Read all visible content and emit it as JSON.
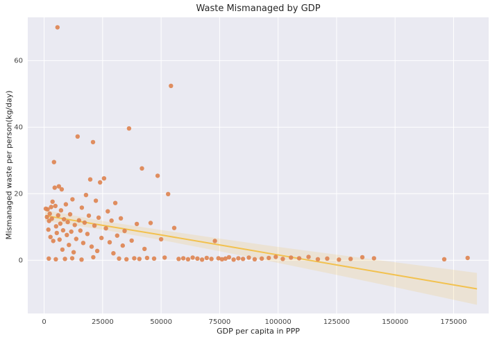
{
  "chart_data": {
    "type": "scatter",
    "title": "Waste Mismanaged by GDP",
    "xlabel": "GDP per capita in PPP",
    "ylabel": "Mismanaged waste per person(kg/day)",
    "xlim": [
      -7000,
      190000
    ],
    "ylim": [
      -16,
      73
    ],
    "xticks": [
      0,
      25000,
      50000,
      75000,
      100000,
      125000,
      150000,
      175000
    ],
    "yticks": [
      0,
      20,
      40,
      60
    ],
    "grid": true,
    "legend": false,
    "styles": {
      "axes_bg": "#eaeaf2",
      "grid_color": "#ffffff",
      "point_color": "#dd8452",
      "line_color": "#f2c14e",
      "band_color": "#f2c14e",
      "band_opacity": 0.18,
      "tick_color": "#444444",
      "title_color": "#262626"
    },
    "points": [
      [
        700,
        15.5
      ],
      [
        1200,
        13.0
      ],
      [
        1500,
        15.3
      ],
      [
        1800,
        9.2
      ],
      [
        2100,
        11.8
      ],
      [
        2400,
        14.0
      ],
      [
        2700,
        7.0
      ],
      [
        3000,
        16.0
      ],
      [
        3300,
        12.5
      ],
      [
        3600,
        17.6
      ],
      [
        3900,
        5.8
      ],
      [
        4200,
        29.5
      ],
      [
        4500,
        21.8
      ],
      [
        4800,
        16.3
      ],
      [
        5100,
        10.2
      ],
      [
        5400,
        8.2
      ],
      [
        5700,
        70.0
      ],
      [
        6000,
        13.5
      ],
      [
        6300,
        22.2
      ],
      [
        6600,
        6.2
      ],
      [
        6900,
        11.0
      ],
      [
        7200,
        15.0
      ],
      [
        7500,
        21.3
      ],
      [
        7800,
        3.2
      ],
      [
        8100,
        9.0
      ],
      [
        8500,
        12.3
      ],
      [
        8900,
        0.4
      ],
      [
        9300,
        16.8
      ],
      [
        9700,
        7.6
      ],
      [
        10100,
        11.5
      ],
      [
        10600,
        4.6
      ],
      [
        11100,
        13.8
      ],
      [
        11600,
        8.6
      ],
      [
        12100,
        18.3
      ],
      [
        12600,
        2.4
      ],
      [
        13100,
        10.6
      ],
      [
        13700,
        6.4
      ],
      [
        14300,
        37.2
      ],
      [
        14900,
        12.0
      ],
      [
        15500,
        8.9
      ],
      [
        16100,
        15.8
      ],
      [
        16700,
        5.2
      ],
      [
        17300,
        11.3
      ],
      [
        17900,
        19.6
      ],
      [
        18500,
        7.9
      ],
      [
        19100,
        13.4
      ],
      [
        19700,
        24.3
      ],
      [
        20300,
        4.1
      ],
      [
        20900,
        35.5
      ],
      [
        21500,
        10.4
      ],
      [
        22100,
        17.9
      ],
      [
        22700,
        2.8
      ],
      [
        23300,
        12.8
      ],
      [
        23900,
        23.4
      ],
      [
        24500,
        6.7
      ],
      [
        2000,
        0.5
      ],
      [
        5000,
        0.3
      ],
      [
        12000,
        0.6
      ],
      [
        16000,
        0.2
      ],
      [
        21000,
        0.9
      ],
      [
        25600,
        24.6
      ],
      [
        26400,
        9.6
      ],
      [
        27200,
        14.7
      ],
      [
        28000,
        5.4
      ],
      [
        28800,
        11.9
      ],
      [
        29600,
        2.1
      ],
      [
        30400,
        17.2
      ],
      [
        31200,
        7.4
      ],
      [
        32000,
        0.5
      ],
      [
        32800,
        12.6
      ],
      [
        33600,
        4.4
      ],
      [
        34400,
        8.8
      ],
      [
        35200,
        0.3
      ],
      [
        36300,
        39.6
      ],
      [
        37400,
        5.9
      ],
      [
        38500,
        0.6
      ],
      [
        39600,
        10.9
      ],
      [
        40700,
        0.4
      ],
      [
        41800,
        27.6
      ],
      [
        42900,
        3.4
      ],
      [
        44000,
        0.7
      ],
      [
        45500,
        11.2
      ],
      [
        47000,
        0.5
      ],
      [
        48500,
        25.4
      ],
      [
        50000,
        6.3
      ],
      [
        51500,
        0.8
      ],
      [
        53000,
        19.9
      ],
      [
        54200,
        52.4
      ],
      [
        55600,
        9.7
      ],
      [
        57500,
        0.4
      ],
      [
        59500,
        0.6
      ],
      [
        61500,
        0.3
      ],
      [
        63500,
        0.8
      ],
      [
        65500,
        0.5
      ],
      [
        67500,
        0.2
      ],
      [
        69500,
        0.7
      ],
      [
        71500,
        0.4
      ],
      [
        73000,
        5.8
      ],
      [
        74500,
        0.6
      ],
      [
        76000,
        0.3
      ],
      [
        77500,
        0.5
      ],
      [
        79000,
        0.9
      ],
      [
        81000,
        0.2
      ],
      [
        83000,
        0.6
      ],
      [
        85000,
        0.4
      ],
      [
        87500,
        0.8
      ],
      [
        90000,
        0.3
      ],
      [
        93000,
        0.5
      ],
      [
        96000,
        0.7
      ],
      [
        99000,
        1.0
      ],
      [
        102000,
        0.4
      ],
      [
        105500,
        0.8
      ],
      [
        109000,
        0.6
      ],
      [
        113000,
        1.0
      ],
      [
        117000,
        0.3
      ],
      [
        121000,
        0.5
      ],
      [
        126000,
        0.2
      ],
      [
        131000,
        0.4
      ],
      [
        136000,
        0.9
      ],
      [
        141000,
        0.6
      ],
      [
        171000,
        0.3
      ],
      [
        181000,
        0.7
      ]
    ],
    "regression": {
      "x": [
        500,
        25000,
        50000,
        75000,
        100000,
        125000,
        150000,
        185000
      ],
      "y": [
        13.4,
        10.5,
        7.6,
        4.6,
        1.6,
        -1.4,
        -4.4,
        -8.6
      ],
      "upper": [
        15.1,
        11.8,
        9.1,
        6.5,
        4.0,
        1.7,
        -0.6,
        -3.8
      ],
      "lower": [
        11.8,
        9.2,
        6.1,
        2.7,
        -0.8,
        -4.4,
        -8.1,
        -13.4
      ]
    }
  }
}
